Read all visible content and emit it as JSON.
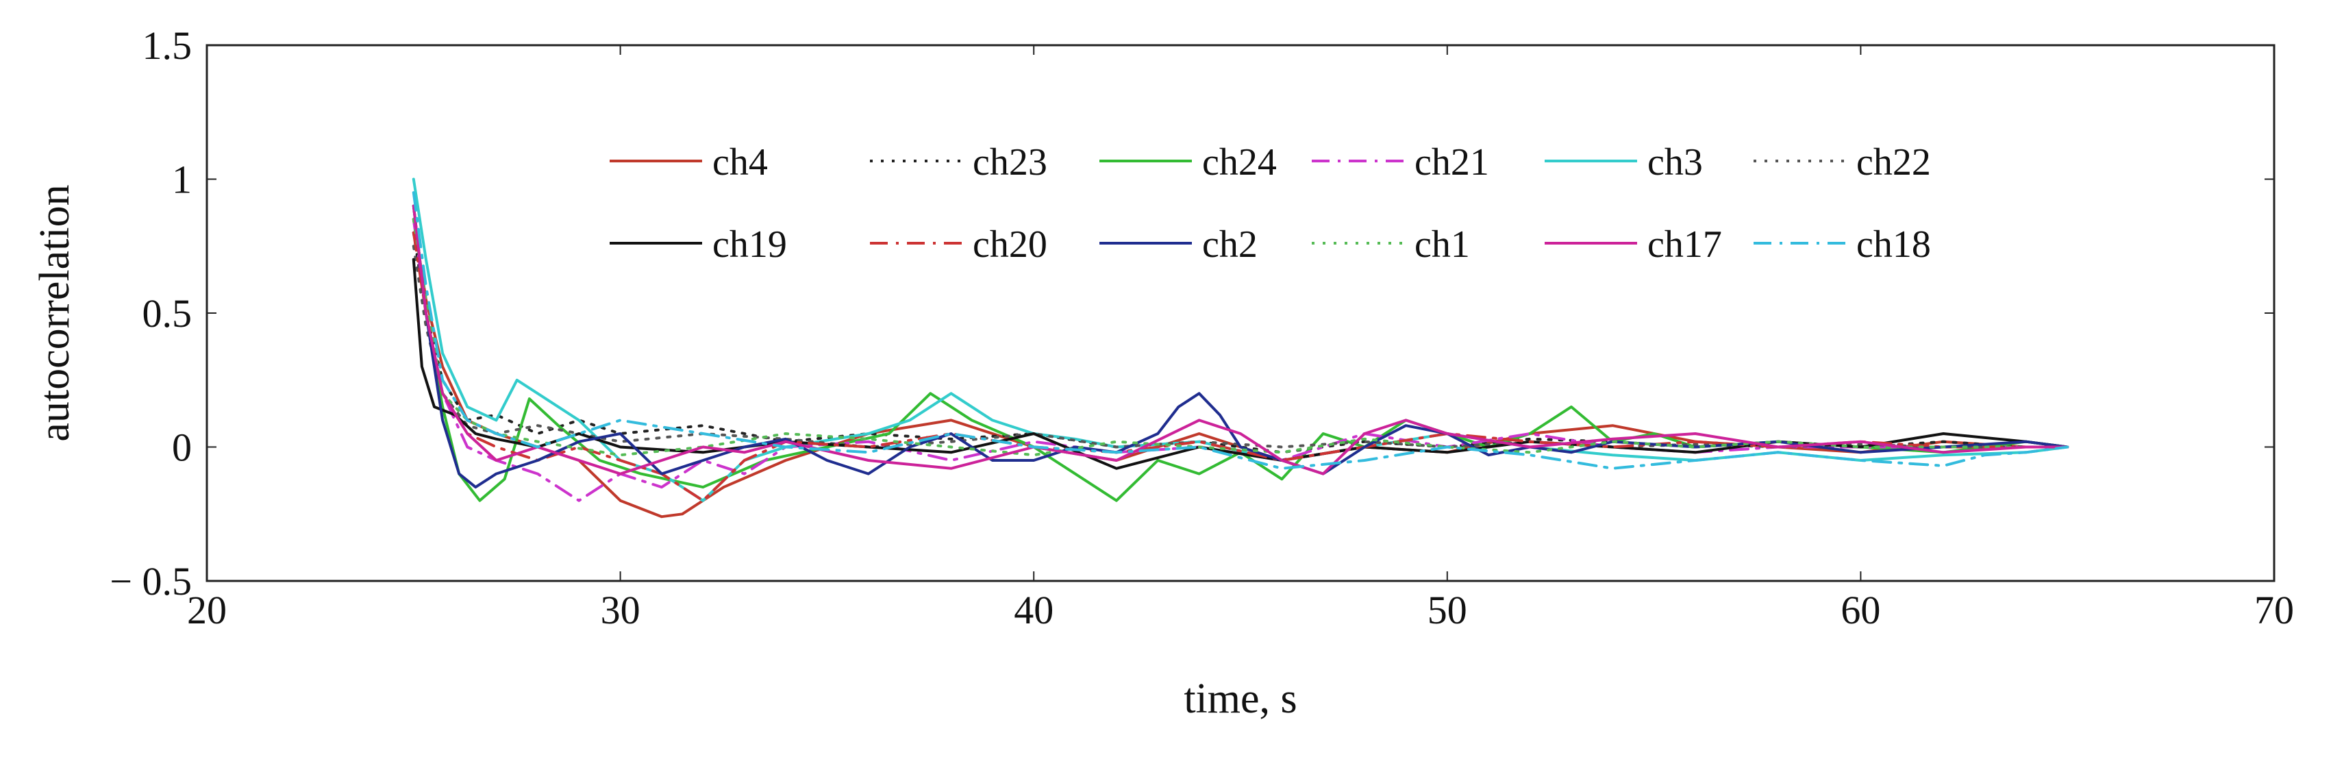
{
  "chart_data": {
    "type": "line",
    "xlabel": "time, s",
    "ylabel": "autocorrelation",
    "xlim": [
      20,
      70
    ],
    "ylim": [
      -0.5,
      1.5
    ],
    "xticks": [
      20,
      30,
      40,
      50,
      60,
      70
    ],
    "xtick_labels": [
      "20",
      "30",
      "40",
      "50",
      "60",
      "70"
    ],
    "yticks": [
      -0.5,
      0,
      0.5,
      1,
      1.5
    ],
    "ytick_labels": [
      "− 0.5",
      "0",
      "0.5",
      "1",
      "1.5"
    ],
    "grid": false,
    "legend_position": "top-center, inside plot, 2 rows x 6 columns",
    "series": [
      {
        "name": "ch4",
        "color": "#c0392b",
        "dash": "solid",
        "x": [
          25,
          25.3,
          25.7,
          26.3,
          27,
          28,
          29,
          30,
          31,
          31.5,
          32.5,
          34,
          36,
          38,
          40,
          42,
          44,
          46,
          48,
          50,
          52,
          54,
          56,
          58,
          60,
          62,
          64,
          65
        ],
        "y": [
          0.85,
          0.55,
          0.3,
          0.1,
          0.05,
          0,
          -0.05,
          -0.2,
          -0.26,
          -0.25,
          -0.15,
          -0.05,
          0.05,
          0.1,
          0,
          -0.05,
          0.05,
          -0.05,
          0,
          -0.02,
          0.05,
          0.08,
          0.02,
          0,
          -0.02,
          0.02,
          0,
          0
        ]
      },
      {
        "name": "ch23",
        "color": "#222222",
        "dash": "dot",
        "x": [
          25,
          25.3,
          25.7,
          26.3,
          27,
          28,
          29,
          30,
          32,
          34,
          36,
          38,
          40,
          42,
          44,
          46,
          48,
          50,
          52,
          54,
          56,
          58,
          60,
          62,
          64,
          65
        ],
        "y": [
          0.8,
          0.5,
          0.25,
          0.1,
          0.12,
          0.05,
          0.1,
          0.05,
          0.08,
          0.02,
          0.05,
          0.03,
          0.05,
          0,
          0.02,
          -0.02,
          0.02,
          0,
          0.03,
          0.02,
          0,
          0.02,
          0,
          0.02,
          0,
          0
        ]
      },
      {
        "name": "ch24",
        "color": "#33bb33",
        "dash": "solid",
        "x": [
          25,
          25.3,
          25.7,
          26.1,
          26.6,
          27.2,
          27.8,
          28.5,
          29.5,
          30.5,
          32,
          33.5,
          35,
          36.5,
          37.5,
          38.5,
          40,
          41,
          42,
          43,
          44,
          45,
          46,
          47,
          48,
          49,
          50,
          51,
          52,
          53,
          54,
          55,
          56,
          58,
          60,
          62,
          64,
          65
        ],
        "y": [
          0.9,
          0.5,
          0.15,
          -0.1,
          -0.2,
          -0.12,
          0.18,
          0.08,
          -0.05,
          -0.1,
          -0.15,
          -0.05,
          0,
          0.05,
          0.2,
          0.1,
          0,
          -0.1,
          -0.2,
          -0.05,
          -0.1,
          -0.02,
          -0.12,
          0.05,
          0,
          0.1,
          0.05,
          0,
          0.05,
          0.15,
          0.02,
          0.05,
          0,
          0.02,
          0,
          -0.02,
          0.02,
          0
        ]
      },
      {
        "name": "ch21",
        "color": "#cc33cc",
        "dash": "dashdot",
        "x": [
          25,
          25.3,
          25.7,
          26.3,
          27,
          28,
          29,
          30,
          31,
          32,
          33,
          34,
          36,
          38,
          40,
          42,
          44,
          46,
          48,
          50,
          52,
          54,
          56,
          58,
          60,
          62,
          64,
          65
        ],
        "y": [
          0.85,
          0.5,
          0.2,
          0,
          -0.05,
          -0.1,
          -0.2,
          -0.1,
          -0.15,
          -0.05,
          -0.1,
          0,
          0.02,
          -0.05,
          0.02,
          -0.02,
          0,
          -0.05,
          0.05,
          0,
          0.05,
          0,
          -0.02,
          0,
          0,
          0,
          0,
          0
        ]
      },
      {
        "name": "ch3",
        "color": "#33cccc",
        "dash": "solid",
        "x": [
          25,
          25.3,
          25.7,
          26.3,
          27,
          27.5,
          28,
          29,
          30,
          31,
          32,
          33,
          34,
          36,
          37,
          38,
          39,
          40,
          41,
          42,
          44,
          46,
          48,
          50,
          52,
          54,
          56,
          58,
          60,
          62,
          64,
          65
        ],
        "y": [
          1.0,
          0.7,
          0.35,
          0.15,
          0.1,
          0.25,
          0.2,
          0.1,
          -0.05,
          -0.1,
          -0.2,
          -0.05,
          0,
          0.05,
          0.1,
          0.2,
          0.1,
          0.05,
          0.03,
          0,
          0.02,
          -0.05,
          0,
          0.05,
          0,
          -0.03,
          -0.05,
          -0.02,
          -0.05,
          -0.03,
          -0.02,
          0
        ]
      },
      {
        "name": "ch22",
        "color": "#555555",
        "dash": "dot",
        "x": [
          25,
          25.3,
          25.7,
          26.3,
          27,
          28,
          30,
          32,
          34,
          36,
          38,
          40,
          42,
          44,
          46,
          48,
          50,
          52,
          54,
          56,
          58,
          60,
          62,
          64,
          65
        ],
        "y": [
          0.75,
          0.45,
          0.2,
          0.08,
          0.05,
          0.08,
          0.02,
          0.05,
          0.03,
          0,
          0.02,
          0.05,
          0,
          0.02,
          0,
          0.02,
          0,
          0.02,
          0,
          0.01,
          0,
          0.01,
          0,
          0,
          0
        ]
      },
      {
        "name": "ch19",
        "color": "#111111",
        "dash": "solid",
        "x": [
          25,
          25.2,
          25.5,
          26,
          26.5,
          27,
          28,
          29,
          30,
          32,
          34,
          36,
          38,
          40,
          42,
          44,
          46,
          48,
          50,
          52,
          54,
          56,
          58,
          60,
          62,
          64,
          65
        ],
        "y": [
          0.7,
          0.3,
          0.15,
          0.12,
          0.05,
          0.03,
          0,
          0.05,
          0,
          -0.02,
          0.02,
          0,
          -0.02,
          0.05,
          -0.08,
          0,
          -0.05,
          0,
          -0.02,
          0.02,
          0,
          -0.02,
          0.02,
          0,
          0.05,
          0.02,
          0
        ]
      },
      {
        "name": "ch20",
        "color": "#cc3333",
        "dash": "dashdot",
        "x": [
          25,
          25.3,
          25.7,
          26.3,
          27,
          28,
          29,
          30,
          31,
          32,
          33,
          34,
          36,
          38,
          40,
          42,
          44,
          46,
          48,
          50,
          52,
          54,
          56,
          58,
          60,
          62,
          64,
          65
        ],
        "y": [
          0.8,
          0.5,
          0.2,
          0.05,
          0,
          -0.05,
          0,
          -0.05,
          -0.1,
          -0.2,
          -0.05,
          0.02,
          0,
          0.05,
          0,
          -0.02,
          0.02,
          -0.05,
          0,
          0.05,
          0.02,
          0,
          0.02,
          0,
          0.02,
          0,
          0,
          0
        ]
      },
      {
        "name": "ch2",
        "color": "#1f2d8f",
        "dash": "solid",
        "x": [
          25,
          25.3,
          25.7,
          26.1,
          26.5,
          27,
          28,
          29,
          30,
          31,
          32,
          33,
          34,
          35,
          36,
          37,
          38,
          39,
          40,
          41,
          42,
          43,
          43.5,
          44,
          44.5,
          45,
          46,
          47,
          48,
          49,
          50,
          51,
          52,
          53,
          54,
          56,
          58,
          60,
          62,
          64,
          65
        ],
        "y": [
          0.9,
          0.5,
          0.1,
          -0.1,
          -0.15,
          -0.1,
          -0.05,
          0.02,
          0.05,
          -0.1,
          -0.05,
          0,
          0.03,
          -0.05,
          -0.1,
          0,
          0.05,
          -0.05,
          -0.05,
          0,
          -0.02,
          0.05,
          0.15,
          0.2,
          0.12,
          0,
          -0.05,
          -0.1,
          0,
          0.08,
          0.05,
          -0.03,
          0,
          -0.02,
          0.02,
          0,
          0.02,
          -0.02,
          0,
          0.02,
          0
        ]
      },
      {
        "name": "ch1",
        "color": "#55bb55",
        "dash": "dot",
        "x": [
          25,
          25.3,
          25.7,
          26.3,
          27,
          28,
          30,
          32,
          34,
          36,
          38,
          40,
          42,
          44,
          46,
          48,
          50,
          52,
          54,
          56,
          58,
          60,
          62,
          64,
          65
        ],
        "y": [
          0.85,
          0.55,
          0.2,
          0.1,
          0.05,
          0.02,
          -0.03,
          0,
          0.05,
          0.03,
          0,
          -0.03,
          0.02,
          0,
          -0.02,
          0.03,
          0,
          -0.02,
          0.02,
          0,
          0.02,
          0,
          0,
          0,
          0
        ]
      },
      {
        "name": "ch17",
        "color": "#cc2299",
        "dash": "solid",
        "x": [
          25,
          25.3,
          25.7,
          26.3,
          27,
          28,
          29,
          30,
          31,
          32,
          33,
          34,
          36,
          38,
          40,
          42,
          44,
          45,
          46,
          47,
          48,
          49,
          50,
          52,
          54,
          56,
          58,
          60,
          62,
          64,
          65
        ],
        "y": [
          0.9,
          0.5,
          0.2,
          0.05,
          -0.05,
          0,
          -0.05,
          -0.1,
          -0.05,
          0,
          -0.02,
          0.02,
          -0.05,
          -0.08,
          0,
          -0.05,
          0.1,
          0.05,
          -0.05,
          -0.1,
          0.05,
          0.1,
          0.05,
          0,
          0.03,
          0.05,
          0,
          0.02,
          -0.02,
          0,
          0
        ]
      },
      {
        "name": "ch18",
        "color": "#33bbdd",
        "dash": "dashdot",
        "x": [
          25,
          25.3,
          25.7,
          26.3,
          27,
          28,
          30,
          32,
          34,
          36,
          38,
          40,
          42,
          44,
          46,
          48,
          50,
          52,
          54,
          56,
          58,
          60,
          62,
          63,
          64,
          65
        ],
        "y": [
          0.95,
          0.6,
          0.25,
          0.1,
          0.05,
          0,
          0.1,
          0.05,
          0,
          -0.02,
          0.05,
          0,
          -0.02,
          0,
          -0.08,
          -0.05,
          0,
          -0.03,
          -0.08,
          -0.05,
          -0.02,
          -0.05,
          -0.07,
          -0.03,
          -0.02,
          0
        ]
      }
    ]
  }
}
